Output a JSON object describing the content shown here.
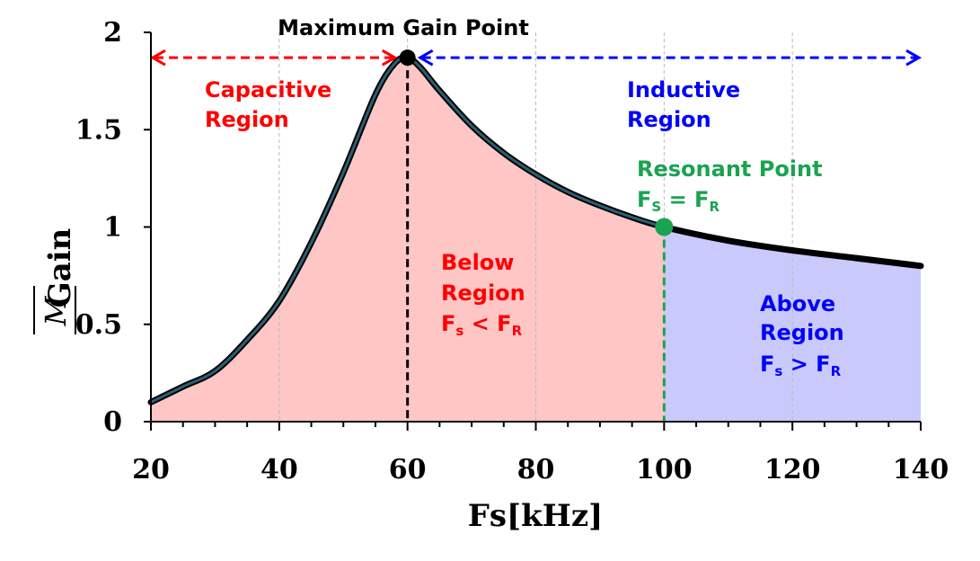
{
  "chart_data": {
    "type": "line",
    "xlabel": "Fs[kHz]",
    "ylabel": "Gain",
    "ylabel_symbol": "M",
    "xlim": [
      20,
      140
    ],
    "ylim": [
      0,
      2
    ],
    "x_ticks": [
      "20",
      "40",
      "60",
      "80",
      "100",
      "120",
      "140"
    ],
    "y_ticks": [
      "0",
      "0.5",
      "1",
      "1.5",
      "2"
    ],
    "grid": "vertical dashed",
    "series": [
      {
        "x": [
          20,
          25,
          30,
          35,
          40,
          45,
          50,
          55,
          58,
          60,
          62,
          65,
          70,
          75,
          80,
          85,
          90,
          95,
          100,
          110,
          120,
          130,
          140
        ],
        "y": [
          0.1,
          0.18,
          0.26,
          0.42,
          0.62,
          0.92,
          1.28,
          1.68,
          1.84,
          1.87,
          1.82,
          1.7,
          1.52,
          1.38,
          1.27,
          1.18,
          1.11,
          1.05,
          1.0,
          0.93,
          0.88,
          0.84,
          0.8
        ],
        "color": "#000000"
      }
    ],
    "regions": [
      {
        "x_range": [
          20,
          100
        ],
        "color": "#ffc6c6"
      },
      {
        "x_range": [
          100,
          140
        ],
        "color": "#c9c9fb"
      }
    ],
    "max_point": {
      "x": 60,
      "y": 1.87,
      "label": "Maximum Gain Point",
      "color": "#000000"
    },
    "resonant_point": {
      "x": 100,
      "y": 1.0,
      "color": "#1aa350"
    },
    "annotations": {
      "capacitive": {
        "line1": "Capacitive",
        "line2": "Region",
        "color": "#ff0000"
      },
      "inductive": {
        "line1": "Inductive",
        "line2": "Region",
        "color": "#0000ff"
      },
      "resonant": {
        "title": "Resonant Point",
        "f": "F",
        "s": "S",
        "eq": " = ",
        "r": "R",
        "color": "#1aa350"
      },
      "below": {
        "line1": "Below",
        "line2": "Region",
        "f": "F",
        "s": "s",
        "op": " < ",
        "r": "R",
        "color": "#ff0000"
      },
      "above": {
        "line1": "Above",
        "line2": "Region",
        "f": "F",
        "s": "s",
        "op": " > ",
        "r": "R",
        "color": "#0000ff"
      }
    }
  }
}
